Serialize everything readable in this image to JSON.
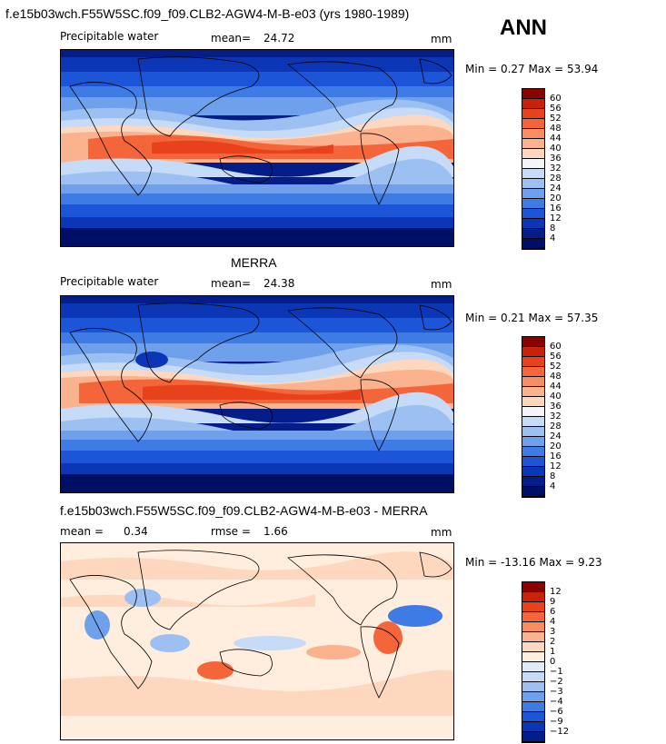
{
  "header": {
    "title": "f.e15b03wch.F55W5SC.f09_f09.CLB2-AGW4-M-B-e03 (yrs 1980-1989)",
    "season": "ANN"
  },
  "panels": [
    {
      "id": "model",
      "variable": "Precipitable water",
      "stat_label": "mean=",
      "stat_value": "24.72",
      "units": "mm",
      "minmax": "Min =   0.27 Max =  53.94",
      "colorbar_levels": [
        "60",
        "56",
        "52",
        "48",
        "44",
        "40",
        "36",
        "32",
        "28",
        "24",
        "20",
        "16",
        "12",
        "8",
        "4"
      ],
      "colorbar_colors": [
        "#8b0000",
        "#c8220a",
        "#e8421c",
        "#f4653a",
        "#f98d62",
        "#fbb38f",
        "#fdd8bf",
        "#f2f6fb",
        "#c6dbf7",
        "#9dc0f2",
        "#6ea0ec",
        "#3f7be5",
        "#1d55d8",
        "#0b36b5",
        "#041d88",
        "#000f66"
      ]
    },
    {
      "id": "obs",
      "title": "MERRA",
      "variable": "Precipitable water",
      "stat_label": "mean=",
      "stat_value": "24.38",
      "units": "mm",
      "minmax": "Min =   0.21 Max =  57.35",
      "colorbar_levels": [
        "60",
        "56",
        "52",
        "48",
        "44",
        "40",
        "36",
        "32",
        "28",
        "24",
        "20",
        "16",
        "12",
        "8",
        "4"
      ],
      "colorbar_colors": [
        "#8b0000",
        "#c8220a",
        "#e8421c",
        "#f4653a",
        "#f98d62",
        "#fbb38f",
        "#fdd8bf",
        "#f2f6fb",
        "#c6dbf7",
        "#9dc0f2",
        "#6ea0ec",
        "#3f7be5",
        "#1d55d8",
        "#0b36b5",
        "#041d88",
        "#000f66"
      ]
    },
    {
      "id": "diff",
      "title": "f.e15b03wch.F55W5SC.f09_f09.CLB2-AGW4-M-B-e03 - MERRA",
      "stat_label": "mean =",
      "stat_value": "0.34",
      "stat2_label": "rmse =",
      "stat2_value": "1.66",
      "units": "mm",
      "minmax": "Min = -13.16 Max =   9.23",
      "colorbar_levels": [
        "12",
        "9",
        "6",
        "4",
        "3",
        "2",
        "1",
        "0",
        "−1",
        "−2",
        "−3",
        "−4",
        "−6",
        "−9",
        "−12"
      ],
      "colorbar_colors": [
        "#8b0000",
        "#c8220a",
        "#e8421c",
        "#f4653a",
        "#f98d62",
        "#fbb38f",
        "#fdd8bf",
        "#ffeedd",
        "#e2ecf9",
        "#c6dbf7",
        "#9dc0f2",
        "#6ea0ec",
        "#3f7be5",
        "#1d55d8",
        "#0b36b5",
        "#041d88"
      ]
    }
  ]
}
